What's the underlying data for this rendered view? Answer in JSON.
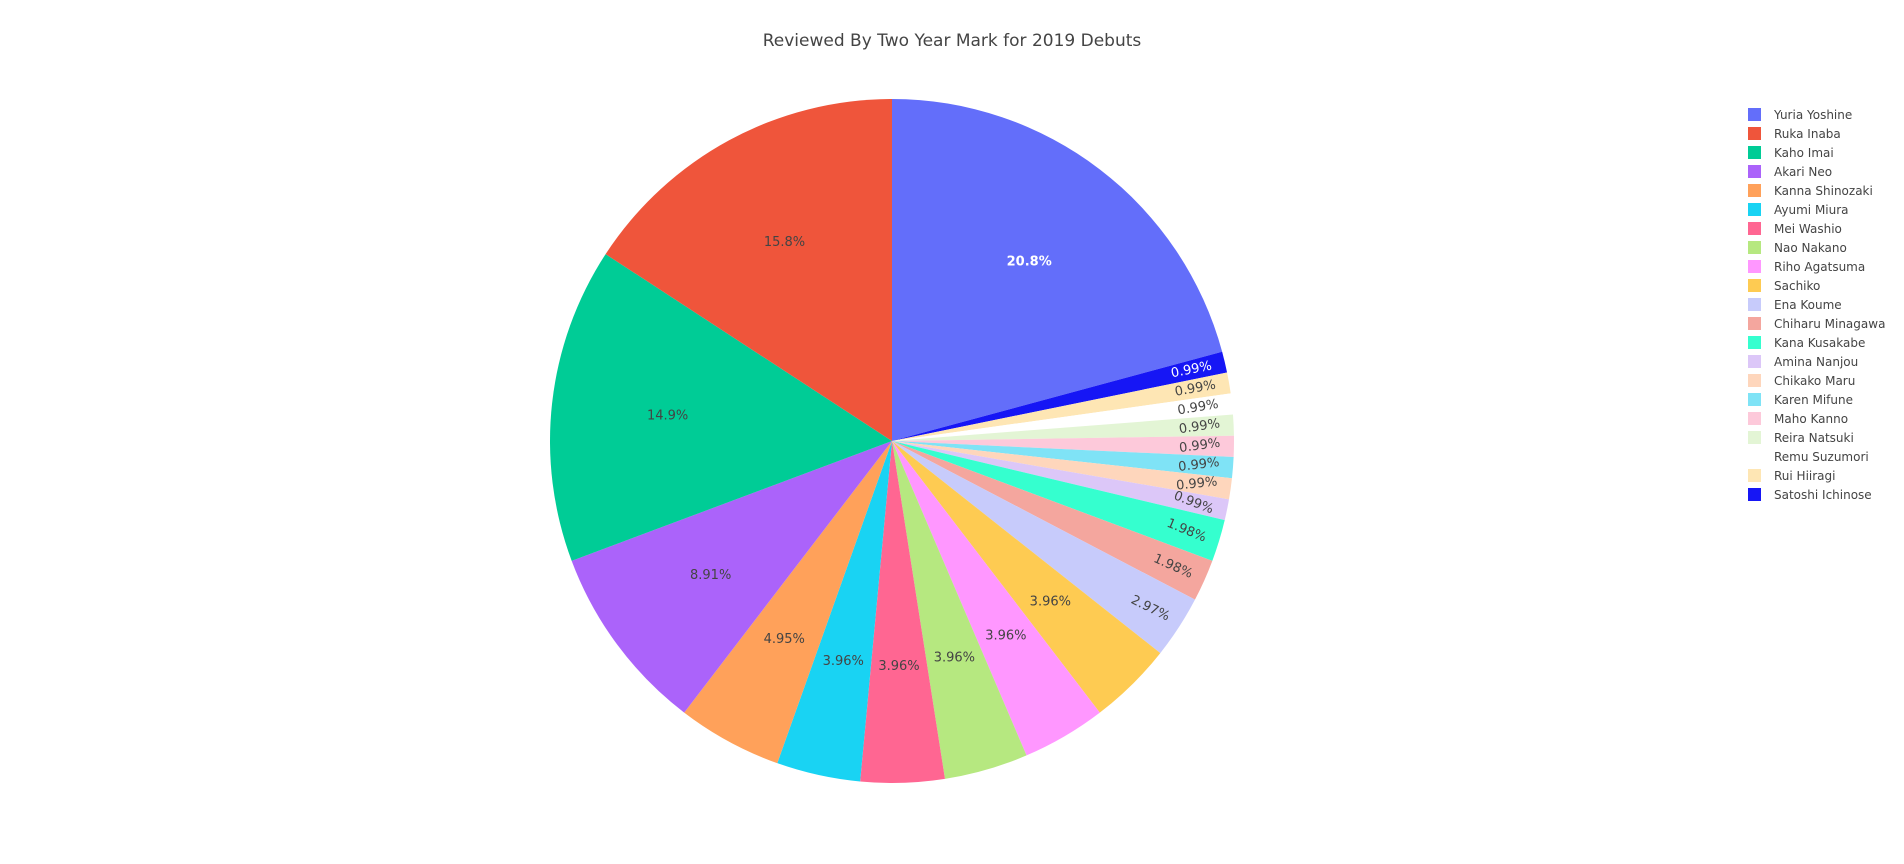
{
  "chart_data": {
    "type": "pie",
    "title": "Reviewed By Two Year Mark for 2019 Debuts",
    "legend_position": "right",
    "direction": "clockwise",
    "start_angle": "top",
    "slices": [
      {
        "label": "Yuria Yoshine",
        "percent": 20.8,
        "text": "20.8%",
        "color": "#636efa",
        "text_color": "#ffffff"
      },
      {
        "label": "Satoshi Ichinose",
        "percent": 0.99,
        "text": "0.99%",
        "color": "#1616f5",
        "text_color": "#ffffff"
      },
      {
        "label": "Rui Hiiragi",
        "percent": 0.99,
        "text": "0.99%",
        "color": "#fee6b4",
        "text_color": "#444444"
      },
      {
        "label": "Remu Suzumori",
        "percent": 0.99,
        "text": "0.99%",
        "color": "#ffffff",
        "text_color": "#444444"
      },
      {
        "label": "Reira Natsuki",
        "percent": 0.99,
        "text": "0.99%",
        "color": "#e3f5d5",
        "text_color": "#444444"
      },
      {
        "label": "Maho Kanno",
        "percent": 0.99,
        "text": "0.99%",
        "color": "#fdc9da",
        "text_color": "#444444"
      },
      {
        "label": "Karen Mifune",
        "percent": 0.99,
        "text": "0.99%",
        "color": "#7fe3f6",
        "text_color": "#444444"
      },
      {
        "label": "Chikako Maru",
        "percent": 0.99,
        "text": "0.99%",
        "color": "#fed6bc",
        "text_color": "#444444"
      },
      {
        "label": "Amina Nanjou",
        "percent": 0.99,
        "text": "0.99%",
        "color": "#dcc7f8",
        "text_color": "#444444"
      },
      {
        "label": "Kana Kusakabe",
        "percent": 1.98,
        "text": "1.98%",
        "color": "#35ffcf",
        "text_color": "#444444"
      },
      {
        "label": "Chiharu Minagawa",
        "percent": 1.98,
        "text": "1.98%",
        "color": "#f4a69e",
        "text_color": "#444444"
      },
      {
        "label": "Ena Koume",
        "percent": 2.97,
        "text": "2.97%",
        "color": "#c7cbfb",
        "text_color": "#444444"
      },
      {
        "label": "Sachiko",
        "percent": 3.96,
        "text": "3.96%",
        "color": "#fecb52",
        "text_color": "#444444"
      },
      {
        "label": "Riho Agatsuma",
        "percent": 3.96,
        "text": "3.96%",
        "color": "#ff97ff",
        "text_color": "#444444"
      },
      {
        "label": "Nao Nakano",
        "percent": 3.96,
        "text": "3.96%",
        "color": "#b6e880",
        "text_color": "#444444"
      },
      {
        "label": "Mei Washio",
        "percent": 3.96,
        "text": "3.96%",
        "color": "#ff6692",
        "text_color": "#444444"
      },
      {
        "label": "Ayumi Miura",
        "percent": 3.96,
        "text": "3.96%",
        "color": "#19d3f3",
        "text_color": "#444444"
      },
      {
        "label": "Kanna Shinozaki",
        "percent": 4.95,
        "text": "4.95%",
        "color": "#ffa15a",
        "text_color": "#444444"
      },
      {
        "label": "Akari Neo",
        "percent": 8.91,
        "text": "8.91%",
        "color": "#ab63fa",
        "text_color": "#444444"
      },
      {
        "label": "Kaho Imai",
        "percent": 14.9,
        "text": "14.9%",
        "color": "#00cc96",
        "text_color": "#444444"
      },
      {
        "label": "Ruka Inaba",
        "percent": 15.8,
        "text": "15.8%",
        "color": "#ef553b",
        "text_color": "#444444"
      }
    ],
    "legend": [
      {
        "label": "Yuria Yoshine",
        "color": "#636efa"
      },
      {
        "label": "Ruka Inaba",
        "color": "#ef553b"
      },
      {
        "label": "Kaho Imai",
        "color": "#00cc96"
      },
      {
        "label": "Akari Neo",
        "color": "#ab63fa"
      },
      {
        "label": "Kanna Shinozaki",
        "color": "#ffa15a"
      },
      {
        "label": "Ayumi Miura",
        "color": "#19d3f3"
      },
      {
        "label": "Mei Washio",
        "color": "#ff6692"
      },
      {
        "label": "Nao Nakano",
        "color": "#b6e880"
      },
      {
        "label": "Riho Agatsuma",
        "color": "#ff97ff"
      },
      {
        "label": "Sachiko",
        "color": "#fecb52"
      },
      {
        "label": "Ena Koume",
        "color": "#c7cbfb"
      },
      {
        "label": "Chiharu Minagawa",
        "color": "#f4a69e"
      },
      {
        "label": "Kana Kusakabe",
        "color": "#35ffcf"
      },
      {
        "label": "Amina Nanjou",
        "color": "#dcc7f8"
      },
      {
        "label": "Chikako Maru",
        "color": "#fed6bc"
      },
      {
        "label": "Karen Mifune",
        "color": "#7fe3f6"
      },
      {
        "label": "Maho Kanno",
        "color": "#fdc9da"
      },
      {
        "label": "Reira Natsuki",
        "color": "#e3f5d5"
      },
      {
        "label": "Remu Suzumori",
        "color": "#ffffff"
      },
      {
        "label": "Rui Hiiragi",
        "color": "#fee6b4"
      },
      {
        "label": "Satoshi Ichinose",
        "color": "#1616f5"
      }
    ]
  }
}
